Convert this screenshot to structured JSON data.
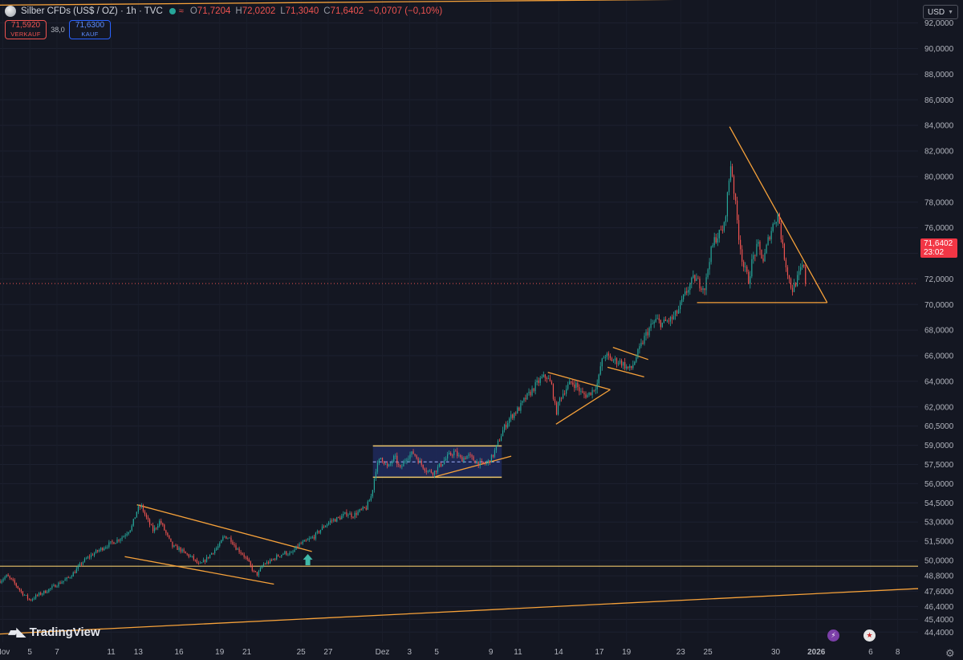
{
  "header": {
    "title": "Silber CFDs (US$ / OZ) · 1h · TVC",
    "wave_icon": "≈",
    "ohlc": [
      {
        "k": "O",
        "v": "71,7204"
      },
      {
        "k": "H",
        "v": "72,0202"
      },
      {
        "k": "L",
        "v": "71,3040"
      },
      {
        "k": "C",
        "v": "71,6402"
      }
    ],
    "change": "−0,0707 (−0,10%)"
  },
  "trade": {
    "sell_price": "71,5920",
    "sell_label": "VERKAUF",
    "spread": "38,0",
    "buy_price": "71,6300",
    "buy_label": "KAUF"
  },
  "currency": "USD",
  "last_price": {
    "price": "71,6402",
    "countdown": "23:02",
    "value": 71.64
  },
  "watermark": "TradingView",
  "icons": [
    "silver-logo-icon",
    "market-open-dot-icon",
    "chevron-down-icon",
    "tradingview-logo-icon",
    "lightning-event-icon",
    "us-flag-event-icon",
    "gear-icon"
  ],
  "colors": {
    "background": "#141722",
    "up": "#26a69a",
    "down": "#ef5350",
    "drawing": "#f7a23a",
    "hline": "#e9c46a",
    "rect_fill": "#1e2a5c",
    "badge": "#f23645"
  },
  "chart_data": {
    "type": "candlestick",
    "symbol": "Silber CFDs (US$ / OZ)",
    "interval": "1h",
    "yaxis_side": "right",
    "ylim": [
      43.6,
      93.8
    ],
    "y_ticks": [
      {
        "v": 92,
        "label": "92,0000"
      },
      {
        "v": 90,
        "label": "90,0000"
      },
      {
        "v": 88,
        "label": "88,0000"
      },
      {
        "v": 86,
        "label": "86,0000"
      },
      {
        "v": 84,
        "label": "84,0000"
      },
      {
        "v": 82,
        "label": "82,0000"
      },
      {
        "v": 80,
        "label": "80,0000"
      },
      {
        "v": 78,
        "label": "78,0000"
      },
      {
        "v": 76,
        "label": "76,0000"
      },
      {
        "v": 74,
        "label": "74,0000"
      },
      {
        "v": 72,
        "label": "72,0000"
      },
      {
        "v": 70,
        "label": "70,0000"
      },
      {
        "v": 68,
        "label": "68,0000"
      },
      {
        "v": 66,
        "label": "66,0000"
      },
      {
        "v": 64,
        "label": "64,0000"
      },
      {
        "v": 62,
        "label": "62,0000"
      },
      {
        "v": 60.5,
        "label": "60,5000"
      },
      {
        "v": 59,
        "label": "59,0000"
      },
      {
        "v": 57.5,
        "label": "57,5000"
      },
      {
        "v": 56,
        "label": "56,0000"
      },
      {
        "v": 54.5,
        "label": "54,5000"
      },
      {
        "v": 53,
        "label": "53,0000"
      },
      {
        "v": 51.5,
        "label": "51,5000"
      },
      {
        "v": 50,
        "label": "50,0000"
      },
      {
        "v": 48.8,
        "label": "48,8000"
      },
      {
        "v": 47.6,
        "label": "47,6000"
      },
      {
        "v": 46.4,
        "label": "46,4000"
      },
      {
        "v": 45.4,
        "label": "45,4000"
      },
      {
        "v": 44.4,
        "label": "44,4000"
      }
    ],
    "x_ticks": [
      {
        "d": 3,
        "label": "Nov"
      },
      {
        "d": 5,
        "label": "5"
      },
      {
        "d": 7,
        "label": "7"
      },
      {
        "d": 11,
        "label": "11"
      },
      {
        "d": 13,
        "label": "13"
      },
      {
        "d": 16,
        "label": "16"
      },
      {
        "d": 19,
        "label": "19"
      },
      {
        "d": 21,
        "label": "21"
      },
      {
        "d": 25,
        "label": "25"
      },
      {
        "d": 27,
        "label": "27"
      },
      {
        "d": 31,
        "label": "Dez"
      },
      {
        "d": 33,
        "label": "3"
      },
      {
        "d": 35,
        "label": "5"
      },
      {
        "d": 39,
        "label": "9"
      },
      {
        "d": 41,
        "label": "11"
      },
      {
        "d": 44,
        "label": "14"
      },
      {
        "d": 47,
        "label": "17"
      },
      {
        "d": 49,
        "label": "19"
      },
      {
        "d": 53,
        "label": "23"
      },
      {
        "d": 55,
        "label": "25"
      },
      {
        "d": 60,
        "label": "30"
      },
      {
        "d": 63,
        "label": "2026"
      },
      {
        "d": 67,
        "label": "6"
      },
      {
        "d": 69,
        "label": "8"
      }
    ],
    "x_tick_bold": "2026",
    "xlim": [
      2.8,
      70.5
    ],
    "price_path": [
      [
        2.8,
        48.4
      ],
      [
        3.3,
        48.8
      ],
      [
        3.8,
        48.3
      ],
      [
        4.4,
        47.5
      ],
      [
        5.0,
        46.9
      ],
      [
        5.6,
        47.3
      ],
      [
        6.2,
        47.6
      ],
      [
        6.8,
        48.0
      ],
      [
        7.3,
        48.3
      ],
      [
        7.8,
        48.6
      ],
      [
        8.3,
        49.1
      ],
      [
        8.9,
        49.9
      ],
      [
        9.5,
        50.4
      ],
      [
        10.1,
        50.8
      ],
      [
        10.7,
        51.2
      ],
      [
        11.3,
        51.5
      ],
      [
        11.9,
        51.9
      ],
      [
        12.5,
        52.6
      ],
      [
        12.9,
        53.9
      ],
      [
        13.2,
        54.3
      ],
      [
        13.6,
        53.3
      ],
      [
        14.1,
        52.3
      ],
      [
        14.6,
        53.1
      ],
      [
        15.0,
        52.2
      ],
      [
        15.5,
        51.1
      ],
      [
        16.0,
        50.9
      ],
      [
        16.5,
        50.5
      ],
      [
        17.0,
        50.2
      ],
      [
        17.5,
        49.6
      ],
      [
        18.0,
        50.1
      ],
      [
        18.5,
        50.7
      ],
      [
        19.0,
        51.2
      ],
      [
        19.3,
        51.9
      ],
      [
        19.8,
        51.7
      ],
      [
        20.2,
        51.0
      ],
      [
        20.7,
        50.5
      ],
      [
        21.1,
        49.9
      ],
      [
        21.5,
        49.1
      ],
      [
        21.8,
        48.9
      ],
      [
        22.2,
        49.7
      ],
      [
        22.7,
        49.9
      ],
      [
        23.2,
        50.3
      ],
      [
        23.8,
        50.6
      ],
      [
        24.3,
        50.5
      ],
      [
        24.8,
        51.2
      ],
      [
        25.4,
        51.5
      ],
      [
        26.0,
        51.9
      ],
      [
        26.6,
        52.6
      ],
      [
        27.2,
        53.1
      ],
      [
        27.8,
        53.3
      ],
      [
        28.4,
        53.7
      ],
      [
        28.8,
        53.5
      ],
      [
        29.4,
        53.9
      ],
      [
        29.8,
        54.1
      ],
      [
        30.2,
        55.1
      ],
      [
        30.5,
        57.1
      ],
      [
        30.9,
        58.1
      ],
      [
        31.4,
        57.2
      ],
      [
        31.9,
        58.1
      ],
      [
        32.3,
        57.1
      ],
      [
        32.8,
        58.1
      ],
      [
        33.3,
        58.4
      ],
      [
        33.8,
        57.6
      ],
      [
        34.3,
        57.0
      ],
      [
        34.8,
        56.9
      ],
      [
        35.3,
        57.5
      ],
      [
        35.8,
        58.1
      ],
      [
        36.3,
        58.5
      ],
      [
        36.8,
        57.9
      ],
      [
        37.3,
        58.2
      ],
      [
        37.8,
        57.8
      ],
      [
        38.3,
        57.5
      ],
      [
        38.7,
        57.6
      ],
      [
        39.1,
        58.1
      ],
      [
        39.5,
        59.1
      ],
      [
        39.9,
        60.2
      ],
      [
        40.3,
        61.0
      ],
      [
        40.7,
        61.5
      ],
      [
        41.1,
        61.9
      ],
      [
        41.5,
        62.6
      ],
      [
        41.9,
        63.1
      ],
      [
        42.3,
        63.7
      ],
      [
        42.7,
        64.2
      ],
      [
        43.1,
        64.4
      ],
      [
        43.5,
        63.6
      ],
      [
        43.8,
        61.5
      ],
      [
        44.1,
        62.7
      ],
      [
        44.5,
        63.4
      ],
      [
        44.9,
        63.9
      ],
      [
        45.3,
        63.7
      ],
      [
        45.7,
        63.0
      ],
      [
        46.1,
        62.9
      ],
      [
        46.5,
        63.3
      ],
      [
        46.9,
        63.9
      ],
      [
        47.1,
        65.3
      ],
      [
        47.4,
        66.1
      ],
      [
        47.8,
        65.7
      ],
      [
        48.2,
        65.6
      ],
      [
        48.6,
        65.5
      ],
      [
        49.0,
        65.1
      ],
      [
        49.3,
        64.9
      ],
      [
        49.6,
        65.6
      ],
      [
        50.0,
        66.6
      ],
      [
        50.4,
        67.6
      ],
      [
        50.8,
        68.3
      ],
      [
        51.2,
        68.8
      ],
      [
        51.6,
        68.5
      ],
      [
        52.0,
        68.7
      ],
      [
        52.4,
        68.9
      ],
      [
        52.8,
        69.5
      ],
      [
        53.2,
        70.5
      ],
      [
        53.6,
        71.4
      ],
      [
        54.0,
        72.1
      ],
      [
        54.4,
        71.6
      ],
      [
        54.8,
        71.3
      ],
      [
        55.1,
        73.6
      ],
      [
        55.5,
        75.1
      ],
      [
        55.9,
        75.6
      ],
      [
        56.2,
        76.1
      ],
      [
        56.5,
        79.1
      ],
      [
        56.7,
        81.2
      ],
      [
        57.0,
        78.1
      ],
      [
        57.3,
        75.2
      ],
      [
        57.6,
        73.1
      ],
      [
        58.0,
        71.9
      ],
      [
        58.3,
        73.6
      ],
      [
        58.7,
        74.6
      ],
      [
        59.1,
        73.4
      ],
      [
        59.5,
        75.3
      ],
      [
        59.9,
        76.5
      ],
      [
        60.2,
        77.1
      ],
      [
        60.5,
        74.5
      ],
      [
        60.9,
        72.4
      ],
      [
        61.2,
        71.1
      ],
      [
        61.6,
        72.0
      ],
      [
        62.0,
        73.1
      ],
      [
        62.3,
        71.6
      ]
    ],
    "horizontal_lines": [
      49.55
    ],
    "rectangle": {
      "x": [
        30.3,
        39.8
      ],
      "y": [
        56.5,
        58.95
      ],
      "mid": 57.7
    },
    "trendlines": [
      {
        "from": [
          2.8,
          44.25
        ],
        "to": [
          70.5,
          47.8
        ]
      },
      {
        "from": [
          2.8,
          93.4
        ],
        "to": [
          70.5,
          94.0
        ]
      },
      {
        "from": [
          12.9,
          54.35
        ],
        "to": [
          25.8,
          50.7
        ]
      },
      {
        "from": [
          12.0,
          50.3
        ],
        "to": [
          23.0,
          48.15
        ]
      },
      {
        "from": [
          34.9,
          56.55
        ],
        "to": [
          40.5,
          58.15
        ]
      },
      {
        "from": [
          43.2,
          64.7
        ],
        "to": [
          47.8,
          63.35
        ]
      },
      {
        "from": [
          43.8,
          60.65
        ],
        "to": [
          47.8,
          63.35
        ]
      },
      {
        "from": [
          48.0,
          66.65
        ],
        "to": [
          50.6,
          65.7
        ]
      },
      {
        "from": [
          47.6,
          65.1
        ],
        "to": [
          50.3,
          64.35
        ]
      },
      {
        "from": [
          54.2,
          70.15
        ],
        "to": [
          63.8,
          70.15
        ]
      },
      {
        "from": [
          56.6,
          83.9
        ],
        "to": [
          63.8,
          70.15
        ]
      }
    ],
    "markers": [
      {
        "type": "arrow-up",
        "x": 25.5,
        "y": 50.0
      }
    ]
  }
}
